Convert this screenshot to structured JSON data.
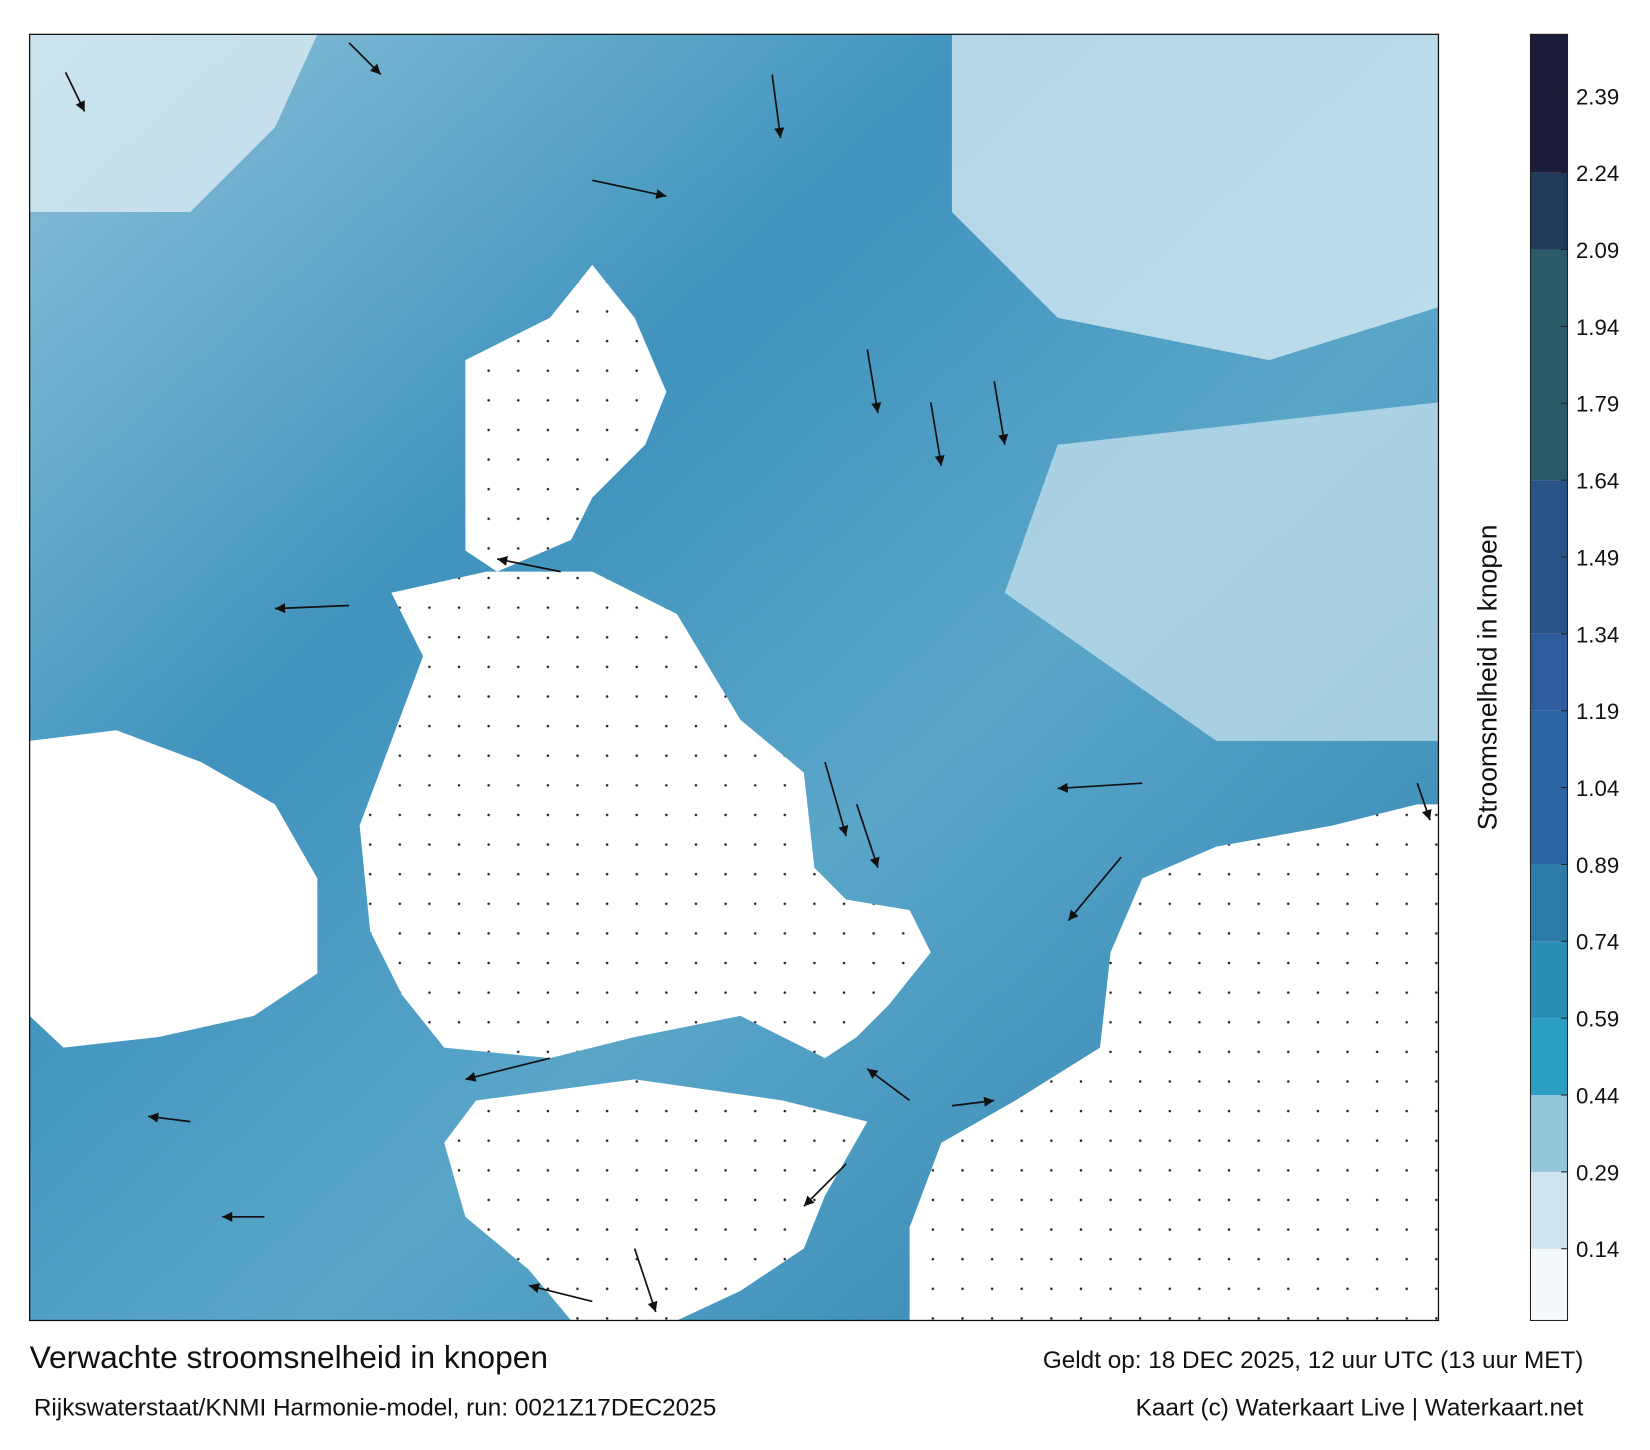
{
  "map": {
    "title": "Verwachte stroomsnelheid in knopen",
    "subtitle": "Rijkswaterstaat/KNMI Harmonie-model, run: 0021Z17DEC2025",
    "valid_time": "Geldt op: 18 DEC 2025, 12 uur UTC (13 uur MET)",
    "credit": "Kaart (c) Waterkaart Live | Waterkaart.net"
  },
  "colorbar": {
    "label": "Stroomsnelheid in knopen",
    "lim": [
      0,
      2.51
    ],
    "ticks": [
      0.14,
      0.29,
      0.44,
      0.59,
      0.74,
      0.89,
      1.04,
      1.19,
      1.34,
      1.49,
      1.64,
      1.79,
      1.94,
      2.09,
      2.24,
      2.39
    ],
    "bands": [
      {
        "from": 0,
        "to": 0.14,
        "color": "#f4f9fc"
      },
      {
        "from": 0.14,
        "to": 0.29,
        "color": "#cfe4ef"
      },
      {
        "from": 0.29,
        "to": 0.44,
        "color": "#94c6dc"
      },
      {
        "from": 0.44,
        "to": 0.59,
        "color": "#2b9ec4"
      },
      {
        "from": 0.59,
        "to": 0.74,
        "color": "#2a8db6"
      },
      {
        "from": 0.74,
        "to": 0.89,
        "color": "#2b7aa8"
      },
      {
        "from": 0.89,
        "to": 1.19,
        "color": "#2b64a0"
      },
      {
        "from": 1.19,
        "to": 1.34,
        "color": "#2e5c9c"
      },
      {
        "from": 1.34,
        "to": 1.64,
        "color": "#2a5488"
      },
      {
        "from": 1.64,
        "to": 2.09,
        "color": "#2b5a68"
      },
      {
        "from": 2.09,
        "to": 2.24,
        "color": "#1f3a5a"
      },
      {
        "from": 2.24,
        "to": 2.51,
        "color": "#1b1b3a"
      }
    ]
  }
}
